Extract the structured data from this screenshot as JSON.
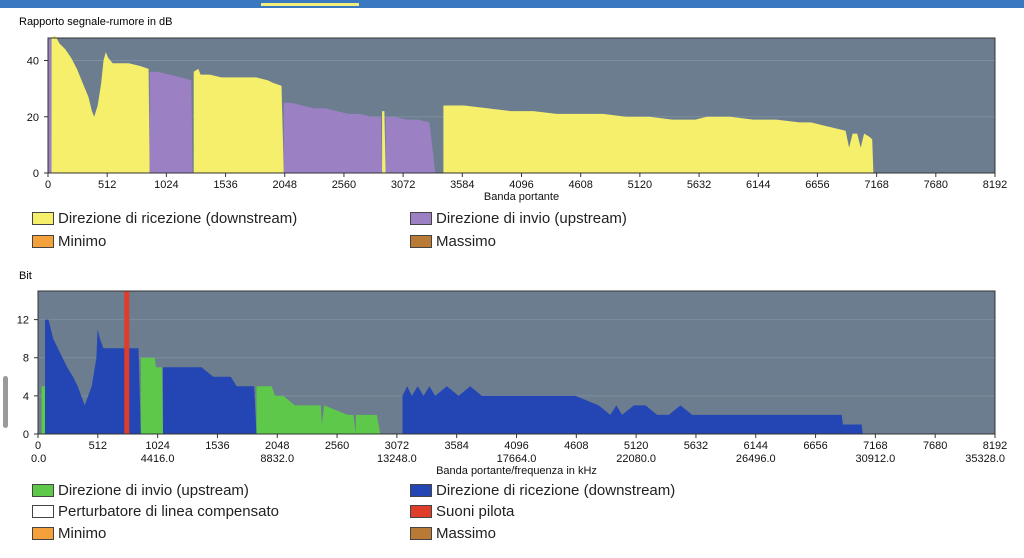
{
  "header": {
    "accent": "#3a78c2",
    "tab_indicator_color": "#f2f07a"
  },
  "chart_data": [
    {
      "type": "area",
      "ylabel": "Rapporto segnale-rumore in dB",
      "xlabel": "Banda portante",
      "xlim": [
        0,
        8192
      ],
      "ylim": [
        0,
        48
      ],
      "xticks": [
        0,
        512,
        1024,
        1536,
        2048,
        2560,
        3072,
        3584,
        4096,
        4608,
        5120,
        5632,
        6144,
        6656,
        7168,
        7680,
        8192
      ],
      "yticks": [
        0,
        20,
        40
      ],
      "plot_bg": "#6b7d8e",
      "grid": true,
      "series": [
        {
          "name": "Direzione di ricezione (downstream)",
          "color": "#f5ef6c",
          "segments": [
            [
              [
                30,
                0
              ],
              [
                30,
                48
              ],
              [
                60,
                49
              ],
              [
                100,
                46
              ],
              [
                150,
                44
              ],
              [
                200,
                41
              ],
              [
                250,
                37
              ],
              [
                300,
                32
              ],
              [
                350,
                27
              ],
              [
                380,
                22
              ],
              [
                400,
                20
              ],
              [
                430,
                24
              ],
              [
                460,
                32
              ],
              [
                480,
                40
              ],
              [
                500,
                43
              ],
              [
                520,
                41
              ],
              [
                560,
                39
              ],
              [
                600,
                39
              ],
              [
                700,
                39
              ],
              [
                800,
                38
              ],
              [
                870,
                37
              ],
              [
                880,
                0
              ]
            ],
            [
              [
                1260,
                0
              ],
              [
                1260,
                36
              ],
              [
                1300,
                37
              ],
              [
                1320,
                35
              ],
              [
                1400,
                35
              ],
              [
                1500,
                34
              ],
              [
                1600,
                34
              ],
              [
                1700,
                34
              ],
              [
                1800,
                34
              ],
              [
                1900,
                33
              ],
              [
                1950,
                32
              ],
              [
                2020,
                31
              ],
              [
                2040,
                0
              ]
            ],
            [
              [
                2890,
                0
              ],
              [
                2890,
                22
              ],
              [
                2910,
                22
              ],
              [
                2920,
                0
              ]
            ],
            [
              [
                3420,
                0
              ],
              [
                3420,
                24
              ],
              [
                3500,
                24
              ],
              [
                3600,
                24
              ],
              [
                3800,
                23
              ],
              [
                4000,
                22
              ],
              [
                4200,
                22
              ],
              [
                4400,
                21
              ],
              [
                4600,
                21
              ],
              [
                4800,
                21
              ],
              [
                5000,
                20
              ],
              [
                5200,
                20
              ],
              [
                5400,
                19
              ],
              [
                5600,
                19
              ],
              [
                5700,
                20
              ],
              [
                5900,
                20
              ],
              [
                6100,
                19
              ],
              [
                6300,
                19
              ],
              [
                6500,
                18
              ],
              [
                6600,
                18
              ],
              [
                6700,
                17
              ],
              [
                6800,
                16
              ],
              [
                6900,
                15
              ],
              [
                6930,
                9
              ],
              [
                6960,
                14
              ],
              [
                7000,
                14
              ],
              [
                7030,
                9
              ],
              [
                7060,
                14
              ],
              [
                7100,
                13
              ],
              [
                7130,
                12
              ],
              [
                7140,
                0
              ]
            ]
          ]
        },
        {
          "name": "Direzione di invio (upstream)",
          "color": "#9b80c4",
          "segments": [
            [
              [
                0,
                0
              ],
              [
                0,
                48
              ],
              [
                25,
                48
              ],
              [
                30,
                0
              ]
            ],
            [
              [
                880,
                0
              ],
              [
                880,
                36
              ],
              [
                950,
                36
              ],
              [
                1050,
                35
              ],
              [
                1150,
                34
              ],
              [
                1240,
                33
              ],
              [
                1250,
                0
              ]
            ],
            [
              [
                2040,
                0
              ],
              [
                2040,
                25
              ],
              [
                2100,
                25
              ],
              [
                2200,
                24
              ],
              [
                2300,
                23
              ],
              [
                2400,
                23
              ],
              [
                2500,
                22
              ],
              [
                2600,
                21
              ],
              [
                2700,
                21
              ],
              [
                2800,
                20
              ],
              [
                2880,
                20
              ],
              [
                2890,
                0
              ]
            ],
            [
              [
                2920,
                0
              ],
              [
                2920,
                20
              ],
              [
                3000,
                20
              ],
              [
                3100,
                19
              ],
              [
                3200,
                19
              ],
              [
                3300,
                18
              ],
              [
                3350,
                0
              ]
            ]
          ]
        },
        {
          "name": "Minimo",
          "color": "#f4a13c",
          "segments": []
        },
        {
          "name": "Massimo",
          "color": "#b97a36",
          "segments": []
        }
      ]
    },
    {
      "type": "area",
      "ylabel": "Bit",
      "xlabel": "Banda portante/frequenza in kHz",
      "xlim": [
        0,
        8192
      ],
      "ylim": [
        0,
        15
      ],
      "xticks": [
        0,
        512,
        1024,
        1536,
        2048,
        2560,
        3072,
        3584,
        4096,
        4608,
        5120,
        5632,
        6144,
        6656,
        7168,
        7680,
        8192
      ],
      "x_freq_labels": [
        "0.0",
        "4416.0",
        "8832.0",
        "13248.0",
        "17664.0",
        "22080.0",
        "26496.0",
        "30912.0",
        "35328.0"
      ],
      "yticks": [
        0,
        4,
        8,
        12
      ],
      "plot_bg": "#6b7d8e",
      "grid": true,
      "series": [
        {
          "name": "Direzione di invio (upstream)",
          "color": "#5ec84a",
          "segments": [
            [
              [
                30,
                0
              ],
              [
                30,
                5
              ],
              [
                60,
                5
              ],
              [
                65,
                0
              ]
            ],
            [
              [
                880,
                0
              ],
              [
                880,
                8
              ],
              [
                1000,
                8
              ],
              [
                1010,
                7
              ],
              [
                1060,
                7
              ],
              [
                1070,
                0
              ]
            ],
            [
              [
                1870,
                0
              ],
              [
                1870,
                5
              ],
              [
                2000,
                5
              ],
              [
                2030,
                4
              ],
              [
                2100,
                4
              ],
              [
                2200,
                3
              ],
              [
                2300,
                3
              ],
              [
                2420,
                3
              ],
              [
                2430,
                1
              ],
              [
                2450,
                3
              ],
              [
                2650,
                2
              ],
              [
                2700,
                2
              ],
              [
                2720,
                0
              ]
            ],
            [
              [
                2720,
                0
              ],
              [
                2720,
                2
              ],
              [
                2900,
                2
              ],
              [
                2930,
                0
              ]
            ]
          ]
        },
        {
          "name": "Direzione di ricezione (downstream)",
          "color": "#2446b4",
          "segments": [
            [
              [
                60,
                0
              ],
              [
                60,
                12
              ],
              [
                90,
                12
              ],
              [
                130,
                10
              ],
              [
                170,
                9
              ],
              [
                210,
                8
              ],
              [
                250,
                7
              ],
              [
                300,
                6
              ],
              [
                340,
                5
              ],
              [
                370,
                4
              ],
              [
                400,
                3
              ],
              [
                430,
                4
              ],
              [
                460,
                5
              ],
              [
                500,
                8
              ],
              [
                510,
                11
              ],
              [
                530,
                10
              ],
              [
                560,
                9
              ],
              [
                640,
                9
              ],
              [
                750,
                9
              ],
              [
                860,
                9
              ],
              [
                880,
                0
              ]
            ],
            [
              [
                1070,
                0
              ],
              [
                1070,
                7
              ],
              [
                1200,
                7
              ],
              [
                1400,
                7
              ],
              [
                1500,
                6
              ],
              [
                1650,
                6
              ],
              [
                1700,
                5
              ],
              [
                1850,
                5
              ],
              [
                1870,
                0
              ]
            ],
            [
              [
                3120,
                0
              ],
              [
                3120,
                4
              ],
              [
                3160,
                5
              ],
              [
                3200,
                4
              ],
              [
                3250,
                5
              ],
              [
                3300,
                4
              ],
              [
                3350,
                5
              ],
              [
                3400,
                4
              ],
              [
                3500,
                5
              ],
              [
                3600,
                4
              ],
              [
                3700,
                5
              ],
              [
                3800,
                4
              ],
              [
                3900,
                4
              ],
              [
                4000,
                4
              ],
              [
                4200,
                4
              ],
              [
                4400,
                4
              ],
              [
                4600,
                4
              ],
              [
                4800,
                3
              ],
              [
                4900,
                2
              ],
              [
                4950,
                3
              ],
              [
                5000,
                2
              ],
              [
                5100,
                3
              ],
              [
                5200,
                3
              ],
              [
                5300,
                2
              ],
              [
                5400,
                2
              ],
              [
                5500,
                3
              ],
              [
                5600,
                2
              ],
              [
                5700,
                2
              ],
              [
                5800,
                2
              ],
              [
                5900,
                2
              ],
              [
                6000,
                2
              ],
              [
                6100,
                2
              ],
              [
                6200,
                2
              ],
              [
                6400,
                2
              ],
              [
                6600,
                2
              ],
              [
                6800,
                2
              ],
              [
                6880,
                2
              ],
              [
                6890,
                1
              ],
              [
                7000,
                1
              ],
              [
                7050,
                1
              ],
              [
                7060,
                0
              ]
            ]
          ]
        },
        {
          "name": "Perturbatore di linea compensato",
          "color": "#ffffff",
          "segments": []
        },
        {
          "name": "Suoni pilota",
          "color": "#e03c2c",
          "lines_x": [
            760
          ]
        },
        {
          "name": "Minimo",
          "color": "#f4a13c",
          "segments": []
        },
        {
          "name": "Massimo",
          "color": "#b97a36",
          "segments": []
        }
      ]
    }
  ]
}
